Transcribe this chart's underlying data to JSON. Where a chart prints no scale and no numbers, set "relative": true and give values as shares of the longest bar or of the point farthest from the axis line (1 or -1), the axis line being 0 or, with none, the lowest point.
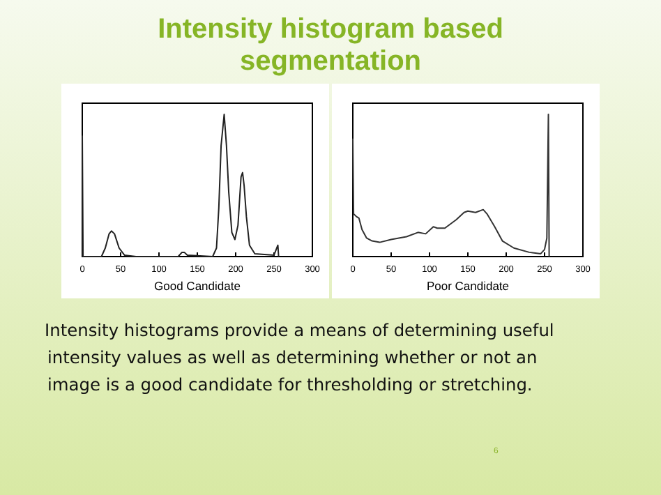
{
  "chart_data": [
    {
      "type": "line",
      "title": "Intensity histogram based segmentation",
      "xlabel": "Good Candidate",
      "relative": true,
      "xlim": [
        0,
        300
      ],
      "xticks": [
        0,
        50,
        100,
        150,
        200,
        250,
        300
      ],
      "tick_labels": "x",
      "grid": false,
      "annotations": [
        "Intensity histograms provide a means of determining useful intensity values as well as determining whether or not an image is a good candidate for thresholding or stretching.",
        "6"
      ],
      "series": [
        {
          "color": "#222222",
          "x": [
            0,
            1,
            25,
            30,
            35,
            38,
            42,
            48,
            55,
            70,
            125,
            130,
            133,
            137,
            170,
            175,
            178,
            181,
            185,
            188,
            191,
            195,
            199,
            203,
            207,
            209,
            211,
            214,
            218,
            225,
            250,
            255,
            256
          ],
          "values": [
            0.85,
            0,
            0,
            0.06,
            0.16,
            0.18,
            0.16,
            0.06,
            0.01,
            0,
            0,
            0.03,
            0.03,
            0.01,
            0,
            0.06,
            0.34,
            0.78,
            1,
            0.78,
            0.45,
            0.17,
            0.12,
            0.22,
            0.56,
            0.59,
            0.5,
            0.28,
            0.08,
            0.02,
            0.01,
            0.08,
            0
          ]
        }
      ]
    },
    {
      "type": "line",
      "xlabel": "Poor Candidate",
      "relative": true,
      "xlim": [
        0,
        300
      ],
      "xticks": [
        0,
        50,
        100,
        150,
        200,
        250,
        300
      ],
      "tick_labels": "x",
      "grid": false,
      "series": [
        {
          "color": "#333333",
          "x": [
            0,
            1,
            5,
            8,
            12,
            18,
            25,
            35,
            50,
            70,
            85,
            95,
            105,
            110,
            120,
            135,
            145,
            150,
            160,
            170,
            175,
            185,
            195,
            210,
            230,
            245,
            250,
            253,
            255,
            256
          ],
          "values": [
            0.83,
            0.3,
            0.28,
            0.27,
            0.19,
            0.13,
            0.11,
            0.1,
            0.12,
            0.14,
            0.17,
            0.16,
            0.21,
            0.2,
            0.2,
            0.26,
            0.31,
            0.32,
            0.31,
            0.33,
            0.3,
            0.21,
            0.11,
            0.06,
            0.03,
            0.02,
            0.05,
            0.13,
            1,
            0
          ]
        }
      ]
    }
  ]
}
